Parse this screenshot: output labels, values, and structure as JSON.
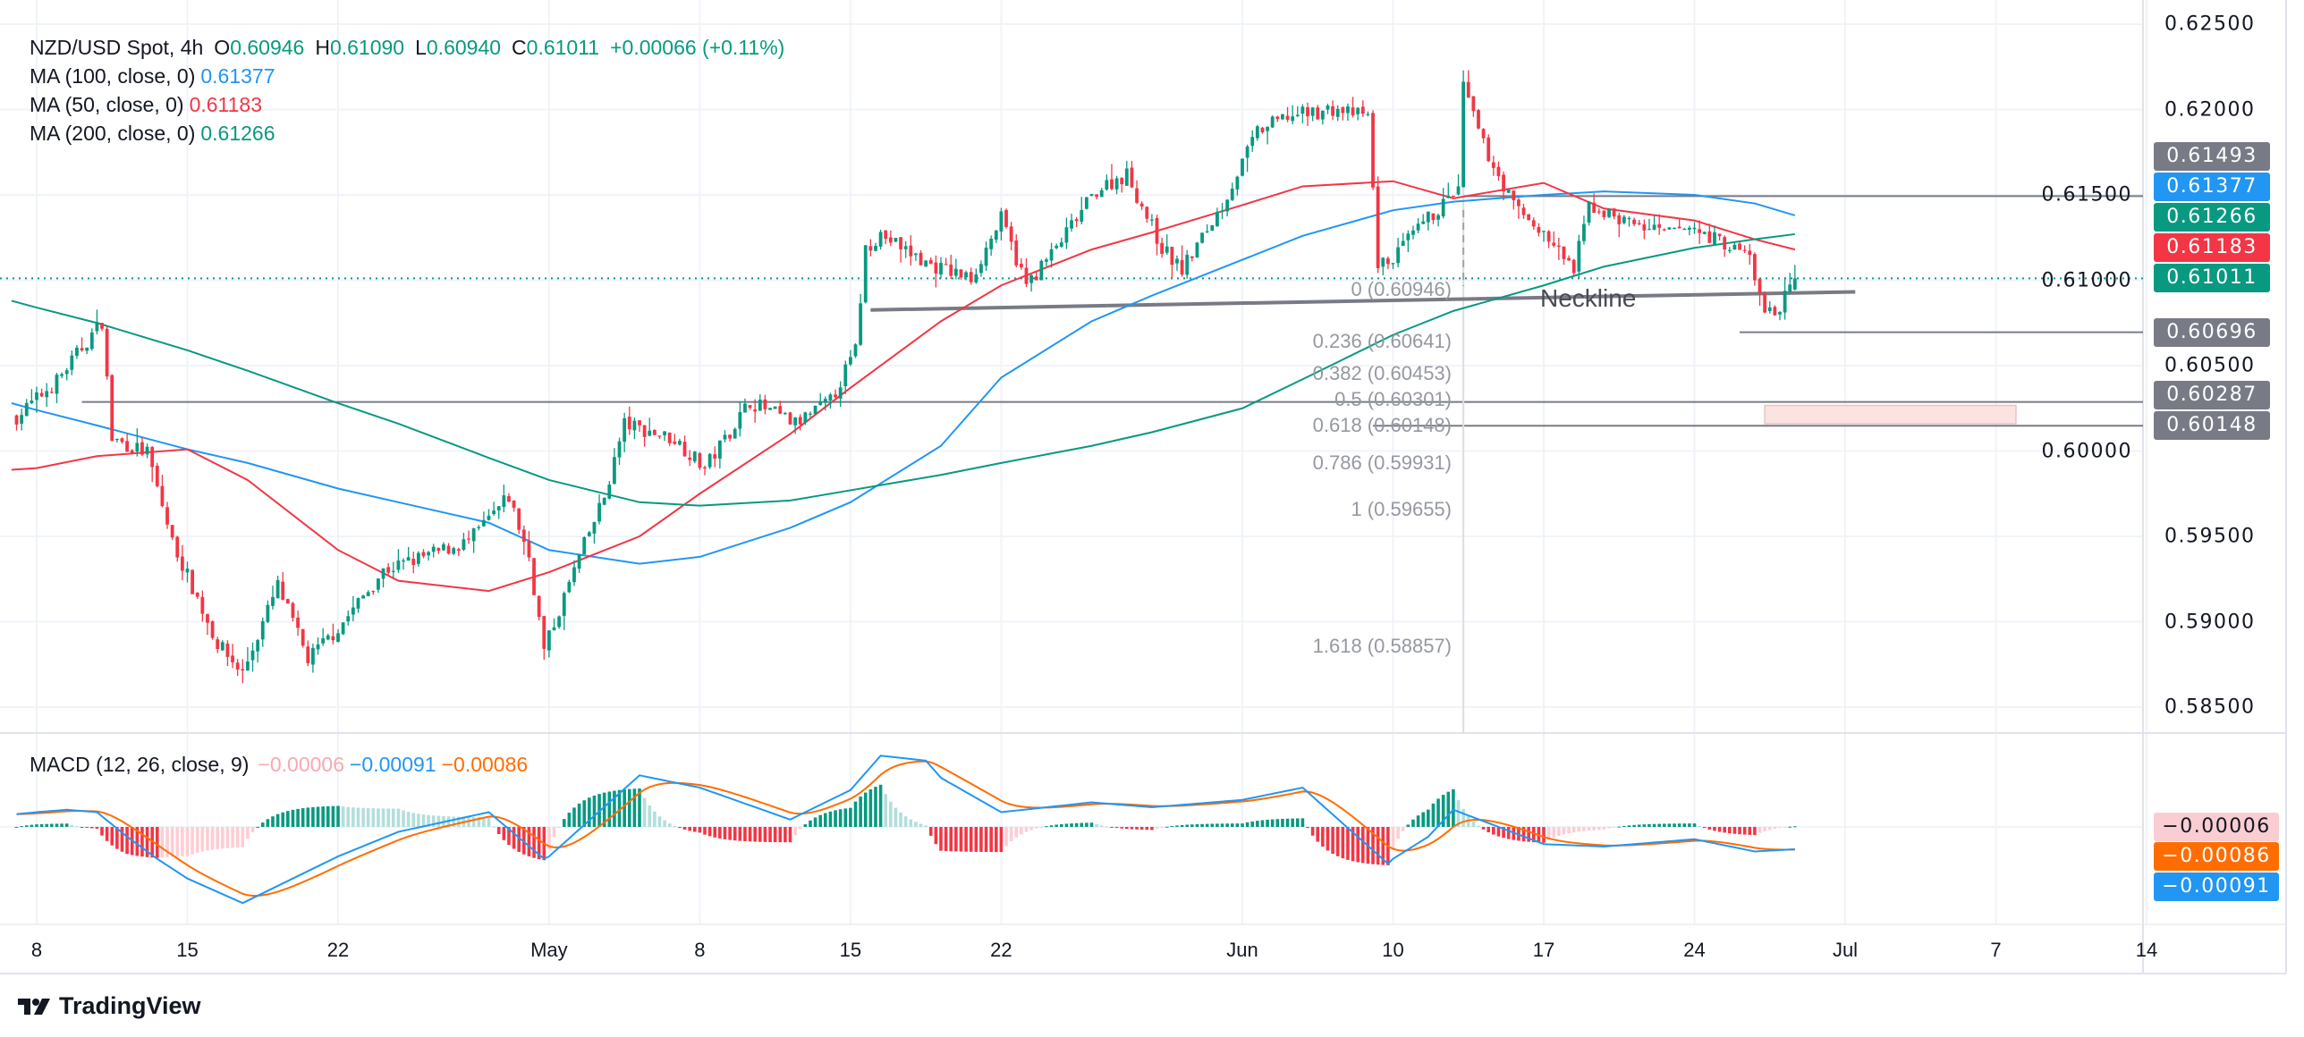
{
  "header": {
    "symbol": "NZD/USD Spot, 4h",
    "o_label": "O",
    "o": "0.60946",
    "h_label": "H",
    "h": "0.61090",
    "l_label": "L",
    "l": "0.60940",
    "c_label": "C",
    "c": "0.61011",
    "change": "+0.00066 (+0.11%)"
  },
  "indicators": [
    {
      "label": "MA (100, close, 0)",
      "value": "0.61377",
      "color": "#2196f3"
    },
    {
      "label": "MA (50, close, 0)",
      "value": "0.61183",
      "color": "#f23645"
    },
    {
      "label": "MA (200, close, 0)",
      "value": "0.61266",
      "color": "#089981"
    }
  ],
  "macd_legend": {
    "label": "MACD (12, 26, close, 9)",
    "hist": "−0.00006",
    "macd": "−0.00091",
    "signal": "−0.00086",
    "hist_color": "#f7a9b0",
    "macd_color": "#2196f3",
    "signal_color": "#ff6d00"
  },
  "branding": {
    "logo_text": "TradingView"
  },
  "chart_data": {
    "type": "candlestick",
    "timeframe": "4h",
    "colors": {
      "up": "#089981",
      "down": "#f23645",
      "ma100": "#2196f3",
      "ma50": "#f23645",
      "ma200": "#089981",
      "signal": "#ff6d00",
      "drawing": "#787b86"
    },
    "x_ticks": [
      {
        "date": "2024-04-08",
        "label": "8"
      },
      {
        "date": "2024-04-15",
        "label": "15"
      },
      {
        "date": "2024-04-22",
        "label": "22"
      },
      {
        "date": "2024-05-01",
        "label": "May"
      },
      {
        "date": "2024-05-08",
        "label": "8"
      },
      {
        "date": "2024-05-15",
        "label": "15"
      },
      {
        "date": "2024-05-22",
        "label": "22"
      },
      {
        "date": "2024-06-03",
        "label": "Jun"
      },
      {
        "date": "2024-06-10",
        "label": "10"
      },
      {
        "date": "2024-06-17",
        "label": "17"
      },
      {
        "date": "2024-06-24",
        "label": "24"
      },
      {
        "date": "2024-07-01",
        "label": "Jul"
      },
      {
        "date": "2024-07-07",
        "label": "7"
      },
      {
        "date": "2024-07-14",
        "label": "14"
      }
    ],
    "y_ticks": [
      "0.62500",
      "0.62000",
      "0.61500",
      "0.61000",
      "0.60500",
      "0.60000",
      "0.59500",
      "0.59000",
      "0.58500"
    ],
    "ylim": [
      0.585,
      0.625
    ],
    "grid": true,
    "price_path": [
      {
        "t": "2024-04-05T08",
        "p": 0.602
      },
      {
        "t": "2024-04-08T16",
        "p": 0.6041
      },
      {
        "t": "2024-04-10T04",
        "p": 0.6076
      },
      {
        "t": "2024-04-10T12",
        "p": 0.6007
      },
      {
        "t": "2024-04-11T16",
        "p": 0.5999
      },
      {
        "t": "2024-04-12T12",
        "p": 0.5947
      },
      {
        "t": "2024-04-16T00",
        "p": 0.5887
      },
      {
        "t": "2024-04-16T20",
        "p": 0.587
      },
      {
        "t": "2024-04-18T00",
        "p": 0.5921
      },
      {
        "t": "2024-04-19T00",
        "p": 0.5878
      },
      {
        "t": "2024-04-22T00",
        "p": 0.5896
      },
      {
        "t": "2024-04-23T12",
        "p": 0.593
      },
      {
        "t": "2024-04-24T20",
        "p": 0.5938
      },
      {
        "t": "2024-04-26T08",
        "p": 0.5947
      },
      {
        "t": "2024-04-29T16",
        "p": 0.5973
      },
      {
        "t": "2024-04-30T08",
        "p": 0.5938
      },
      {
        "t": "2024-04-30T20",
        "p": 0.5883
      },
      {
        "t": "2024-05-02T00",
        "p": 0.5938
      },
      {
        "t": "2024-05-02T20",
        "p": 0.5973
      },
      {
        "t": "2024-05-03T12",
        "p": 0.6016
      },
      {
        "t": "2024-05-07T04",
        "p": 0.6007
      },
      {
        "t": "2024-05-08T04",
        "p": 0.599
      },
      {
        "t": "2024-05-09T16",
        "p": 0.6029
      },
      {
        "t": "2024-05-13T04",
        "p": 0.6016
      },
      {
        "t": "2024-05-14T08",
        "p": 0.6029
      },
      {
        "t": "2024-05-15T04",
        "p": 0.6059
      },
      {
        "t": "2024-05-15T12",
        "p": 0.6119
      },
      {
        "t": "2024-05-16T00",
        "p": 0.6127
      },
      {
        "t": "2024-05-17T12",
        "p": 0.611
      },
      {
        "t": "2024-05-21T00",
        "p": 0.6101
      },
      {
        "t": "2024-05-22T00",
        "p": 0.6136
      },
      {
        "t": "2024-05-22T20",
        "p": 0.6097
      },
      {
        "t": "2024-05-23T20",
        "p": 0.6119
      },
      {
        "t": "2024-05-27T04",
        "p": 0.6153
      },
      {
        "t": "2024-05-28T04",
        "p": 0.6162
      },
      {
        "t": "2024-05-29T08",
        "p": 0.6119
      },
      {
        "t": "2024-05-30T00",
        "p": 0.6106
      },
      {
        "t": "2024-05-31T08",
        "p": 0.6144
      },
      {
        "t": "2024-06-03T12",
        "p": 0.6187
      },
      {
        "t": "2024-06-04T12",
        "p": 0.6196
      },
      {
        "t": "2024-06-06T00",
        "p": 0.62
      },
      {
        "t": "2024-06-07T04",
        "p": 0.6196
      },
      {
        "t": "2024-06-07T12",
        "p": 0.611
      },
      {
        "t": "2024-06-07T20",
        "p": 0.611
      },
      {
        "t": "2024-06-11T04",
        "p": 0.6136
      },
      {
        "t": "2024-06-12T04",
        "p": 0.6153
      },
      {
        "t": "2024-06-12T08",
        "p": 0.6213
      },
      {
        "t": "2024-06-13T00",
        "p": 0.6179
      },
      {
        "t": "2024-06-14T00",
        "p": 0.6144
      },
      {
        "t": "2024-06-17T00",
        "p": 0.6127
      },
      {
        "t": "2024-06-18T00",
        "p": 0.6106
      },
      {
        "t": "2024-06-18T12",
        "p": 0.6144
      },
      {
        "t": "2024-06-19T12",
        "p": 0.6136
      },
      {
        "t": "2024-06-21T00",
        "p": 0.6127
      },
      {
        "t": "2024-06-21T20",
        "p": 0.6131
      },
      {
        "t": "2024-06-24T20",
        "p": 0.6123
      },
      {
        "t": "2024-06-25T20",
        "p": 0.6114
      },
      {
        "t": "2024-06-26T08",
        "p": 0.608
      },
      {
        "t": "2024-06-26T20",
        "p": 0.6084
      },
      {
        "t": "2024-06-27T08",
        "p": 0.6101
      }
    ],
    "last_bar": {
      "open": 0.60946,
      "high": 0.6109,
      "low": 0.6094,
      "close": 0.61011
    },
    "ma_dates": [
      "2024-04-05T04",
      "2024-04-08T00",
      "2024-04-10T00",
      "2024-04-15T00",
      "2024-04-17T00",
      "2024-04-22T00",
      "2024-04-24T00",
      "2024-04-29T00",
      "2024-05-01T00",
      "2024-05-06T00",
      "2024-05-08T00",
      "2024-05-13T00",
      "2024-05-15T00",
      "2024-05-20T00",
      "2024-05-22T00",
      "2024-05-27T00",
      "2024-05-29T00",
      "2024-06-03T00",
      "2024-06-05T00",
      "2024-06-10T00",
      "2024-06-12T00",
      "2024-06-17T00",
      "2024-06-19T00",
      "2024-06-24T00",
      "2024-06-26T00",
      "2024-06-27T08"
    ],
    "series": [
      {
        "name": "MA (100, close, 0)",
        "color": "#2196f3",
        "values": [
          0.6028,
          0.6024,
          0.6015,
          0.6001,
          0.5993,
          0.5978,
          0.597,
          0.5958,
          0.5942,
          0.5934,
          0.5938,
          0.5955,
          0.597,
          0.6003,
          0.6043,
          0.6076,
          0.6091,
          0.6112,
          0.6126,
          0.6141,
          0.6146,
          0.615,
          0.6152,
          0.615,
          0.6145,
          0.6138
        ]
      },
      {
        "name": "MA (50, close, 0)",
        "color": "#f23645",
        "values": [
          0.5989,
          0.599,
          0.5997,
          0.6001,
          0.5983,
          0.5942,
          0.5924,
          0.5918,
          0.5929,
          0.595,
          0.5975,
          0.601,
          0.6037,
          0.6076,
          0.6097,
          0.6118,
          0.6128,
          0.6144,
          0.6155,
          0.6158,
          0.6148,
          0.6157,
          0.6142,
          0.6135,
          0.6124,
          0.6118
        ]
      },
      {
        "name": "MA (200, close, 0)",
        "color": "#089981",
        "values": [
          0.6088,
          0.6084,
          0.6075,
          0.6059,
          0.6047,
          0.6028,
          0.6016,
          0.5996,
          0.5983,
          0.597,
          0.5968,
          0.5971,
          0.5977,
          0.5986,
          0.5993,
          0.6003,
          0.6011,
          0.6025,
          0.6042,
          0.6068,
          0.6082,
          0.6097,
          0.6108,
          0.6119,
          0.6124,
          0.6127
        ]
      }
    ],
    "price_tags": [
      {
        "value": "0.61493",
        "color": "#787b86"
      },
      {
        "value": "0.61377",
        "color": "#2196f3"
      },
      {
        "value": "0.61266",
        "color": "#089981"
      },
      {
        "value": "0.61183",
        "color": "#f23645"
      },
      {
        "value": "0.61011",
        "color": "#089981"
      },
      {
        "value": "0.60696",
        "color": "#787b86"
      },
      {
        "value": "0.60287",
        "color": "#787b86"
      },
      {
        "value": "0.60148",
        "color": "#787b86"
      }
    ],
    "horizontal_lines": [
      {
        "price": 0.61493,
        "from": "2024-06-12T08"
      },
      {
        "price": 0.60696,
        "from": "2024-06-25T12"
      },
      {
        "price": 0.60287,
        "from": "2024-04-09T12"
      },
      {
        "price": 0.60148,
        "from": "2024-06-07T08"
      }
    ],
    "current_price_line": 0.61011,
    "neckline": {
      "label": "Neckline",
      "start": {
        "t": "2024-05-15T16",
        "p": 0.60826
      },
      "end": {
        "t": "2024-07-01T08",
        "p": 0.60932
      }
    },
    "target_zone": {
      "from": "2024-06-26T08",
      "to": "2024-07-08T16",
      "top": 0.60267,
      "bottom": 0.6016,
      "color": "#fde2e2"
    },
    "fibonacci": {
      "anchor": "2024-06-12T08",
      "levels": [
        {
          "ratio": "0",
          "price": "0.60946"
        },
        {
          "ratio": "0.236",
          "price": "0.60641"
        },
        {
          "ratio": "0.382",
          "price": "0.60453"
        },
        {
          "ratio": "0.5",
          "price": "0.60301"
        },
        {
          "ratio": "0.618",
          "price": "0.60148"
        },
        {
          "ratio": "0.786",
          "price": "0.59931"
        },
        {
          "ratio": "1",
          "price": "0.59655"
        },
        {
          "ratio": "1.618",
          "price": "0.58857"
        }
      ]
    },
    "macd": {
      "fast": 12,
      "slow": 26,
      "signal_period": 9,
      "dates": [
        "2024-04-05T04",
        "2024-04-08T00",
        "2024-04-09T00",
        "2024-04-10T00",
        "2024-04-11T00",
        "2024-04-12T00",
        "2024-04-15T00",
        "2024-04-16T20",
        "2024-04-17T00",
        "2024-04-22T00",
        "2024-04-24T00",
        "2024-04-29T00",
        "2024-04-30T20",
        "2024-05-01T00",
        "2024-05-06T00",
        "2024-05-08T00",
        "2024-05-13T00",
        "2024-05-15T00",
        "2024-05-16T00",
        "2024-05-17T12",
        "2024-05-20T00",
        "2024-05-22T00",
        "2024-05-27T00",
        "2024-05-29T00",
        "2024-06-03T00",
        "2024-06-05T00",
        "2024-06-07T20",
        "2024-06-10T00",
        "2024-06-11T04",
        "2024-06-12T00",
        "2024-06-17T00",
        "2024-06-19T00",
        "2024-06-24T00",
        "2024-06-26T00",
        "2024-06-27T08"
      ],
      "macd_values": [
        0.0005,
        0.0006,
        0.0007,
        0.0006,
        -0.0004,
        -0.0013,
        -0.0021,
        -0.0031,
        -0.003,
        -0.0012,
        -0.0002,
        0.0006,
        -0.0013,
        -0.0012,
        0.0021,
        0.0016,
        0.0003,
        0.0015,
        0.0029,
        0.0027,
        0.002,
        0.0006,
        0.001,
        0.0008,
        0.0011,
        0.0016,
        -0.0015,
        -0.0013,
        -0.0004,
        0.0007,
        -0.0007,
        -0.0008,
        -0.0005,
        -0.001,
        -0.00091
      ],
      "colors": {
        "pos_up": "#089981",
        "pos_down": "#b2dfdb",
        "neg_down": "#f23645",
        "neg_up": "#ffcdd2"
      },
      "value_tags": [
        {
          "value": "−0.00006",
          "bg": "#f9cdd1",
          "fg": "#131722"
        },
        {
          "value": "−0.00086",
          "bg": "#ff6d00",
          "fg": "#ffffff"
        },
        {
          "value": "−0.00091",
          "bg": "#2196f3",
          "fg": "#ffffff"
        }
      ]
    }
  }
}
